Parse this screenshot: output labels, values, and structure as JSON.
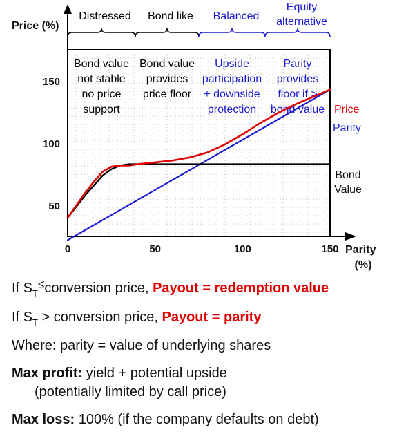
{
  "chart_data": {
    "type": "line",
    "ylabel": "Price (%)",
    "xlabel": "Parity (%)",
    "xlim": [
      0,
      150
    ],
    "ylim": [
      25,
      175
    ],
    "xticks": [
      "0",
      "50",
      "100",
      "150"
    ],
    "yticks": [
      {
        "value": 150,
        "label": "150"
      },
      {
        "value": 100,
        "label": "100"
      },
      {
        "value": 50,
        "label": "50"
      }
    ],
    "series": [
      {
        "name": "Price",
        "color": "#e00000",
        "x": [
          0,
          5,
          10,
          15,
          20,
          25,
          30,
          35,
          40,
          50,
          60,
          70,
          80,
          90,
          100,
          110,
          120,
          130,
          140,
          150
        ],
        "y": [
          40,
          50,
          60,
          69,
          77,
          81,
          82,
          82,
          83,
          84.5,
          86,
          88.5,
          92.5,
          99,
          107,
          116,
          124,
          131,
          137,
          143
        ]
      },
      {
        "name": "Parity",
        "color": "#1a1ad0",
        "x": [
          0,
          150
        ],
        "y": [
          22,
          143
        ]
      },
      {
        "name": "Bond Value",
        "color": "#000000",
        "x": [
          0,
          5,
          10,
          15,
          20,
          25,
          30,
          35,
          40,
          150
        ],
        "y": [
          40,
          49,
          58,
          66,
          74,
          79,
          82,
          83,
          83,
          83
        ]
      }
    ],
    "series_labels": {
      "price": "Price",
      "parity": "Parity",
      "bond_line1": "Bond",
      "bond_line2": "Value"
    },
    "zones": [
      {
        "label": "Distressed",
        "label2": "",
        "color": "#000000",
        "desc": [
          "Bond value",
          "not stable",
          "no price",
          "support"
        ],
        "desc_color": "#000000"
      },
      {
        "label": "Bond like",
        "label2": "",
        "color": "#000000",
        "desc": [
          "Bond value",
          "provides",
          "price floor"
        ],
        "desc_color": "#000000"
      },
      {
        "label": "Balanced",
        "label2": "",
        "color": "#1a1ad0",
        "desc": [
          "Upside",
          "participation",
          "+ downside",
          "protection"
        ],
        "desc_color": "#1a1ad0"
      },
      {
        "label": "Equity",
        "label2": "alternative",
        "color": "#1a1ad0",
        "desc": [
          "Parity",
          "provides",
          "floor if >",
          "bond value"
        ],
        "desc_color": "#1a1ad0"
      }
    ],
    "xlabel_line1": "Parity",
    "xlabel_line2": "(%)"
  },
  "notes": {
    "line1_prefix": "If S",
    "line1_sub": "T",
    "line1_op": "≤",
    "line1_mid": "conversion price, ",
    "line1_payout": "Payout = redemption value",
    "line2_prefix": "If S",
    "line2_sub": "T",
    "line2_mid": " > conversion price, ",
    "line2_payout": "Payout = parity",
    "line3": "Where: parity = value of underlying shares",
    "line4_bold": "Max profit:",
    "line4_rest": " yield + potential upside",
    "line5": "(potentially limited by call price)",
    "line6_bold": "Max loss:",
    "line6_rest": " 100% (if the company defaults on debt)"
  }
}
